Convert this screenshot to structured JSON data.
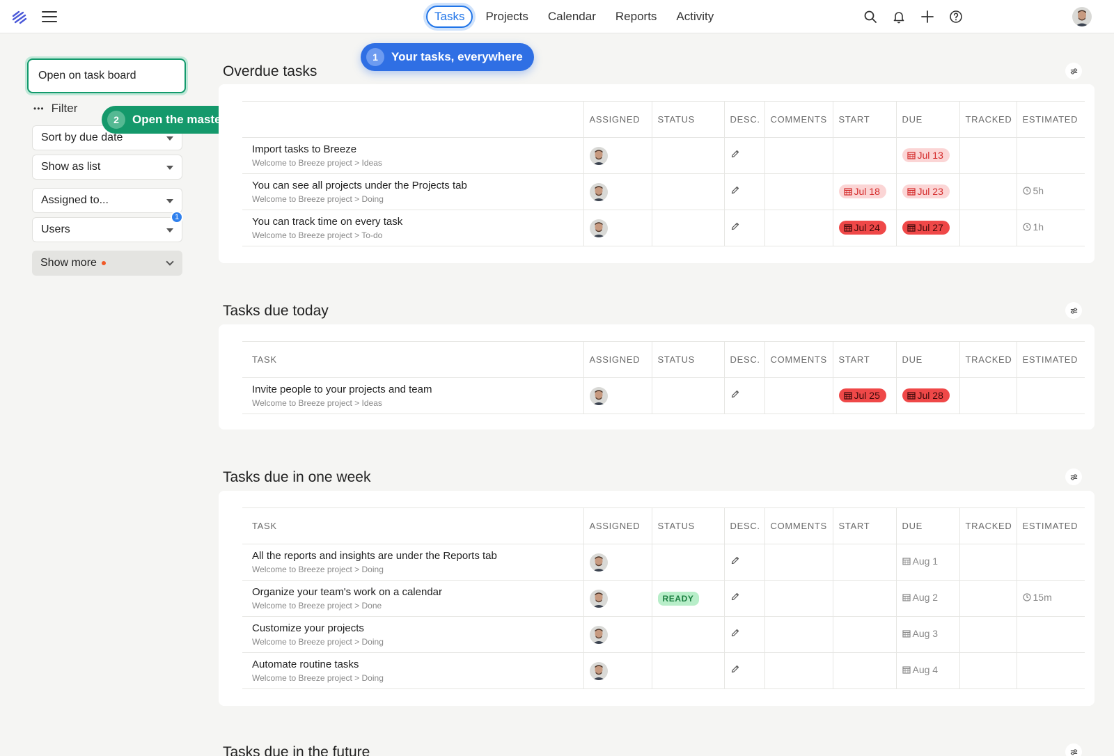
{
  "nav": {
    "items": [
      {
        "label": "Tasks",
        "active": true
      },
      {
        "label": "Projects",
        "active": false
      },
      {
        "label": "Calendar",
        "active": false
      },
      {
        "label": "Reports",
        "active": false
      },
      {
        "label": "Activity",
        "active": false
      }
    ]
  },
  "top_icons": [
    "search-icon",
    "bell-icon",
    "plus-icon",
    "help-icon"
  ],
  "sidebar": {
    "open_board": "Open on task board",
    "filter": "Filter",
    "sort": "Sort by due date",
    "show_as": "Show as list",
    "assigned": "Assigned to...",
    "users": "Users",
    "users_badge": "1",
    "show_more": "Show more"
  },
  "tips": {
    "tip1": {
      "num": "1",
      "text": "Your tasks, everywhere"
    },
    "tip2": {
      "num": "2",
      "text": "Open the master task board"
    }
  },
  "columns": [
    "TASK",
    "ASSIGNED",
    "STATUS",
    "DESC.",
    "COMMENTS",
    "START",
    "DUE",
    "TRACKED",
    "ESTIMATED"
  ],
  "sections": [
    {
      "title": "Overdue tasks",
      "tasks": [
        {
          "name": "Import tasks to Breeze",
          "path": "Welcome to Breeze project > Ideas",
          "status": "",
          "start": "",
          "start_style": "",
          "due": "Jul 13",
          "due_style": "light",
          "tracked": "",
          "estimated": ""
        },
        {
          "name": "You can see all projects under the Projects tab",
          "path": "Welcome to Breeze project > Doing",
          "status": "",
          "start": "Jul 18",
          "start_style": "light",
          "due": "Jul 23",
          "due_style": "light",
          "tracked": "",
          "estimated": "5h"
        },
        {
          "name": "You can track time on every task",
          "path": "Welcome to Breeze project > To-do",
          "status": "",
          "start": "Jul 24",
          "start_style": "strong",
          "due": "Jul 27",
          "due_style": "strong",
          "tracked": "",
          "estimated": "1h"
        }
      ]
    },
    {
      "title": "Tasks due today",
      "tasks": [
        {
          "name": "Invite people to your projects and team",
          "path": "Welcome to Breeze project > Ideas",
          "status": "",
          "start": "Jul 25",
          "start_style": "strong",
          "due": "Jul 28",
          "due_style": "strong",
          "tracked": "",
          "estimated": ""
        }
      ]
    },
    {
      "title": "Tasks due in one week",
      "tasks": [
        {
          "name": "All the reports and insights are under the Reports tab",
          "path": "Welcome to Breeze project > Doing",
          "status": "",
          "start": "",
          "start_style": "",
          "due": "Aug 1",
          "due_style": "plain",
          "tracked": "",
          "estimated": ""
        },
        {
          "name": "Organize your team's work on a calendar",
          "path": "Welcome to Breeze project > Done",
          "status": "READY",
          "start": "",
          "start_style": "",
          "due": "Aug 2",
          "due_style": "plain",
          "tracked": "",
          "estimated": "15m"
        },
        {
          "name": "Customize your projects",
          "path": "Welcome to Breeze project > Doing",
          "status": "",
          "start": "",
          "start_style": "",
          "due": "Aug 3",
          "due_style": "plain",
          "tracked": "",
          "estimated": ""
        },
        {
          "name": "Automate routine tasks",
          "path": "Welcome to Breeze project > Doing",
          "status": "",
          "start": "",
          "start_style": "",
          "due": "Aug 4",
          "due_style": "plain",
          "tracked": "",
          "estimated": ""
        }
      ]
    },
    {
      "title": "Tasks due in the future",
      "tasks": []
    }
  ],
  "colors": {
    "accent": "#1f74e8",
    "tip_blue": "#2f6fe4",
    "tip_green": "#14996b",
    "overdue_light": "#fbd5d5",
    "overdue_strong": "#ef4848",
    "ready_bg": "#b8eec9"
  }
}
